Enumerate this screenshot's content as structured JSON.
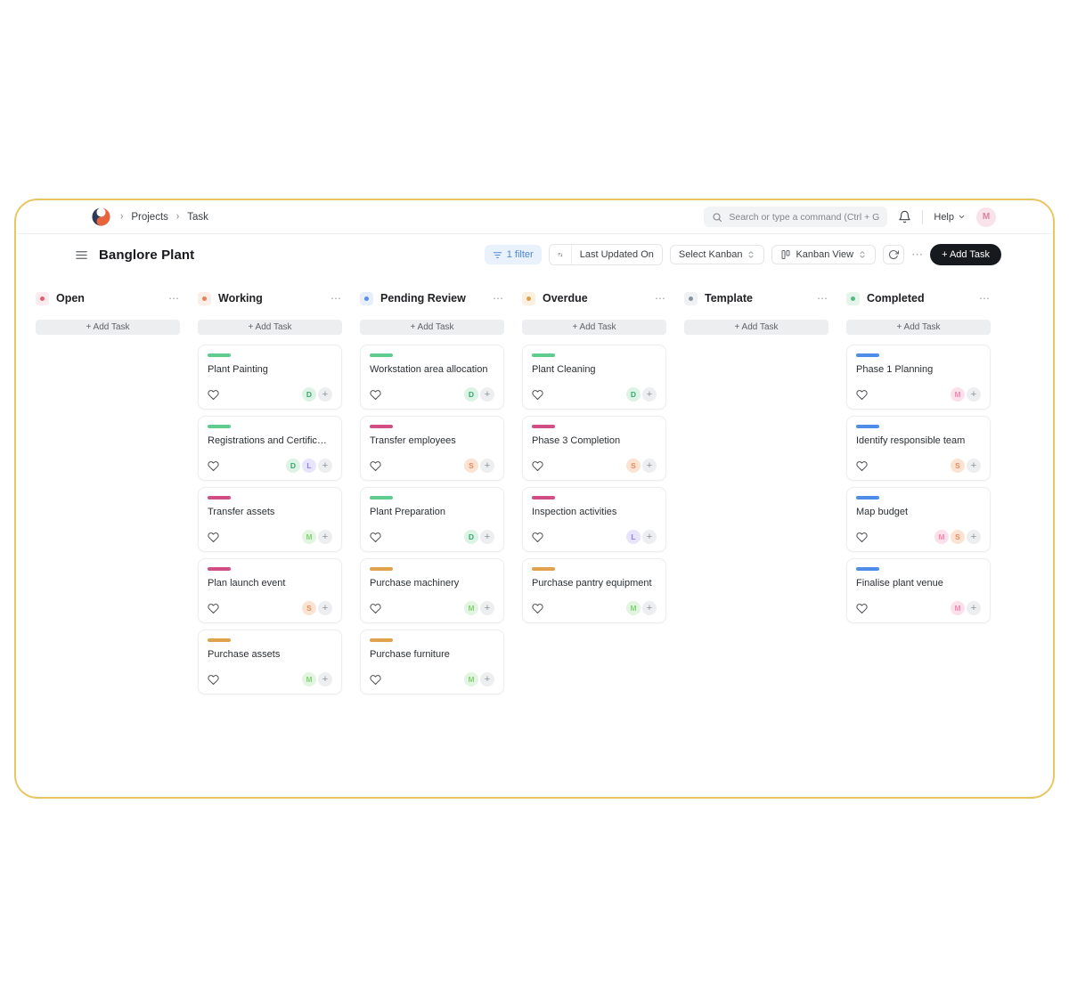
{
  "colors": {
    "window_border": "#eac564",
    "add_task_bg": "#16191d",
    "filter_chip_bg": "#e9f1fc",
    "filter_chip_text": "#4e87d6",
    "avatar_bg": "#f9e2ea",
    "avatar_text": "#d9849f"
  },
  "topbar": {
    "breadcrumb": {
      "items": [
        "Projects",
        "Task"
      ]
    },
    "search": {
      "placeholder": "Search or type a command (Ctrl + G)"
    },
    "help_label": "Help",
    "avatar_initial": "M"
  },
  "header": {
    "title": "Banglore Plant",
    "toolbar": {
      "filter_label": "1 filter",
      "sort_value": "Last Updated On",
      "kanban_select_label": "Select Kanban",
      "view_label": "Kanban View",
      "more_label": "⋯",
      "add_task_label": "+ Add Task"
    }
  },
  "board": {
    "add_task_label": "+ Add Task",
    "plus_label": "+",
    "menu_label": "⋯",
    "columns": [
      {
        "title": "Open",
        "dot_color": "#e25c70",
        "dot_bg": "#fcebee",
        "cards": []
      },
      {
        "title": "Working",
        "dot_color": "#e2845c",
        "dot_bg": "#fbeee6",
        "cards": [
          {
            "title": "Plant Painting",
            "bar_color": "#5ecb8f",
            "badges": [
              {
                "label": "D",
                "bg": "#dcf3e6",
                "color": "#3aa66b"
              }
            ]
          },
          {
            "title": "Registrations and Certificati...",
            "bar_color": "#5ecb8f",
            "badges": [
              {
                "label": "D",
                "bg": "#dcf3e6",
                "color": "#3aa66b"
              },
              {
                "label": "L",
                "bg": "#e8e4fb",
                "color": "#8f7ff0"
              }
            ]
          },
          {
            "title": "Transfer assets",
            "bar_color": "#d14d85",
            "badges": [
              {
                "label": "M",
                "bg": "#e2f5e0",
                "color": "#86cf79"
              }
            ]
          },
          {
            "title": "Plan launch event",
            "bar_color": "#d14d85",
            "badges": [
              {
                "label": "S",
                "bg": "#fbe3d4",
                "color": "#e98b5d"
              }
            ]
          },
          {
            "title": "Purchase assets",
            "bar_color": "#e0a24b",
            "badges": [
              {
                "label": "M",
                "bg": "#e2f5e0",
                "color": "#86cf79"
              }
            ]
          }
        ]
      },
      {
        "title": "Pending Review",
        "dot_color": "#5b8def",
        "dot_bg": "#e7effc",
        "cards": [
          {
            "title": "Workstation area allocation",
            "bar_color": "#5ecb8f",
            "badges": [
              {
                "label": "D",
                "bg": "#dcf3e6",
                "color": "#3aa66b"
              }
            ]
          },
          {
            "title": "Transfer employees",
            "bar_color": "#d14d85",
            "badges": [
              {
                "label": "S",
                "bg": "#fbe3d4",
                "color": "#e98b5d"
              }
            ]
          },
          {
            "title": "Plant Preparation",
            "bar_color": "#5ecb8f",
            "badges": [
              {
                "label": "D",
                "bg": "#dcf3e6",
                "color": "#3aa66b"
              }
            ]
          },
          {
            "title": "Purchase machinery",
            "bar_color": "#e0a24b",
            "badges": [
              {
                "label": "M",
                "bg": "#e2f5e0",
                "color": "#86cf79"
              }
            ]
          },
          {
            "title": "Purchase furniture",
            "bar_color": "#e0a24b",
            "badges": [
              {
                "label": "M",
                "bg": "#e2f5e0",
                "color": "#86cf79"
              }
            ]
          }
        ]
      },
      {
        "title": "Overdue",
        "dot_color": "#d9a14e",
        "dot_bg": "#faf0e0",
        "cards": [
          {
            "title": "Plant Cleaning",
            "bar_color": "#5ecb8f",
            "badges": [
              {
                "label": "D",
                "bg": "#dcf3e6",
                "color": "#3aa66b"
              }
            ]
          },
          {
            "title": "Phase 3 Completion",
            "bar_color": "#d14d85",
            "badges": [
              {
                "label": "S",
                "bg": "#fbe3d4",
                "color": "#e98b5d"
              }
            ]
          },
          {
            "title": "Inspection activities",
            "bar_color": "#d14d85",
            "badges": [
              {
                "label": "L",
                "bg": "#e8e4fb",
                "color": "#8f7ff0"
              }
            ]
          },
          {
            "title": "Purchase pantry equipment",
            "bar_color": "#e0a24b",
            "badges": [
              {
                "label": "M",
                "bg": "#e2f5e0",
                "color": "#86cf79"
              }
            ]
          }
        ]
      },
      {
        "title": "Template",
        "dot_color": "#8a94a0",
        "dot_bg": "#eff1f3",
        "cards": []
      },
      {
        "title": "Completed",
        "dot_color": "#55b97e",
        "dot_bg": "#e6f5ec",
        "cards": [
          {
            "title": "Phase 1 Planning",
            "bar_color": "#4f8be8",
            "badges": [
              {
                "label": "M",
                "bg": "#fbdfe9",
                "color": "#ef8bb0"
              }
            ]
          },
          {
            "title": "Identify responsible team",
            "bar_color": "#4f8be8",
            "badges": [
              {
                "label": "S",
                "bg": "#fbe3d4",
                "color": "#e98b5d"
              }
            ]
          },
          {
            "title": "Map budget",
            "bar_color": "#4f8be8",
            "badges": [
              {
                "label": "M",
                "bg": "#fbdfe9",
                "color": "#ef8bb0"
              },
              {
                "label": "S",
                "bg": "#fbe3d4",
                "color": "#e98b5d"
              }
            ]
          },
          {
            "title": "Finalise plant venue",
            "bar_color": "#4f8be8",
            "badges": [
              {
                "label": "M",
                "bg": "#fbdfe9",
                "color": "#ef8bb0"
              }
            ]
          }
        ]
      }
    ]
  }
}
